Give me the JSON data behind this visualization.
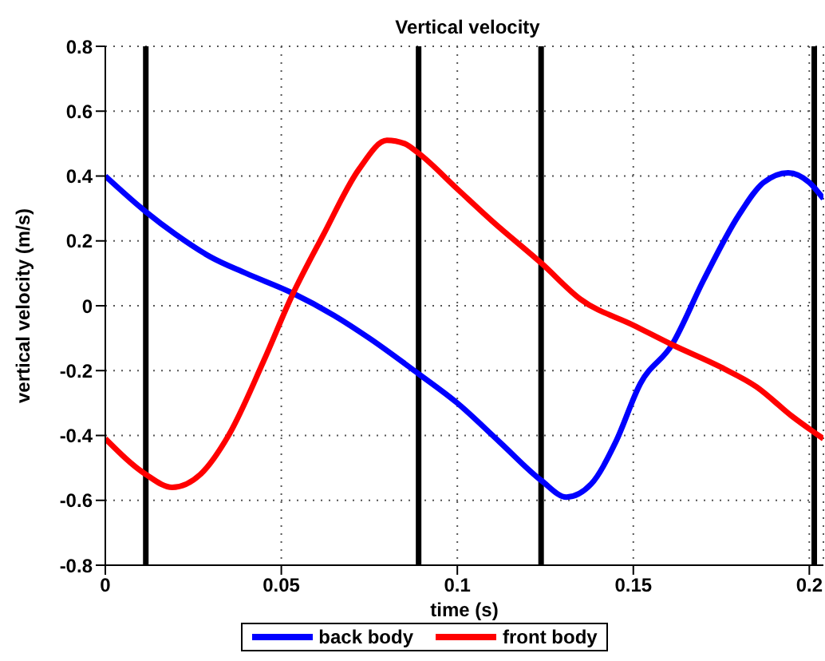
{
  "chart_data": {
    "type": "line",
    "title": "Vertical velocity",
    "xlabel": "time (s)",
    "ylabel": "vertical velocity (m/s)",
    "xlim": [
      0,
      0.204
    ],
    "xticks": [
      0,
      0.05,
      0.1,
      0.15,
      0.2
    ],
    "ylim": [
      -0.8,
      0.8
    ],
    "yticks": [
      -0.8,
      -0.6,
      -0.4,
      -0.2,
      0,
      0.2,
      0.4,
      0.6,
      0.8
    ],
    "grid": true,
    "legend": "bottom",
    "marker": "none",
    "line_style": "solid",
    "series": [
      {
        "name": "back body",
        "color": "#0000ff",
        "x": [
          0,
          0.0115,
          0.02,
          0.03,
          0.04,
          0.053,
          0.065,
          0.075,
          0.089,
          0.1,
          0.112,
          0.124,
          0.131,
          0.138,
          0.145,
          0.152,
          0.161,
          0.17,
          0.18,
          0.187,
          0.194,
          0.2,
          0.204
        ],
        "values": [
          0.4,
          0.29,
          0.22,
          0.15,
          0.1,
          0.04,
          -0.03,
          -0.1,
          -0.21,
          -0.3,
          -0.42,
          -0.54,
          -0.59,
          -0.55,
          -0.42,
          -0.24,
          -0.12,
          0.08,
          0.28,
          0.38,
          0.41,
          0.38,
          0.33
        ]
      },
      {
        "name": "front body",
        "color": "#ff0000",
        "x": [
          0,
          0.0115,
          0.019,
          0.027,
          0.035,
          0.045,
          0.053,
          0.062,
          0.072,
          0.08,
          0.085,
          0.089,
          0.1,
          0.11,
          0.124,
          0.135,
          0.15,
          0.161,
          0.175,
          0.185,
          0.195,
          0.204
        ],
        "values": [
          -0.41,
          -0.52,
          -0.56,
          -0.52,
          -0.4,
          -0.17,
          0.03,
          0.22,
          0.42,
          0.51,
          0.5,
          0.47,
          0.36,
          0.26,
          0.13,
          0.02,
          -0.06,
          -0.12,
          -0.19,
          -0.25,
          -0.34,
          -0.41
        ]
      }
    ],
    "ref_lines": [
      {
        "axis": "x",
        "value": 0.0115,
        "color": "#000000"
      },
      {
        "axis": "x",
        "value": 0.089,
        "color": "#000000"
      },
      {
        "axis": "x",
        "value": 0.1238,
        "color": "#000000"
      },
      {
        "axis": "x",
        "value": 0.2014,
        "color": "#000000"
      }
    ]
  }
}
